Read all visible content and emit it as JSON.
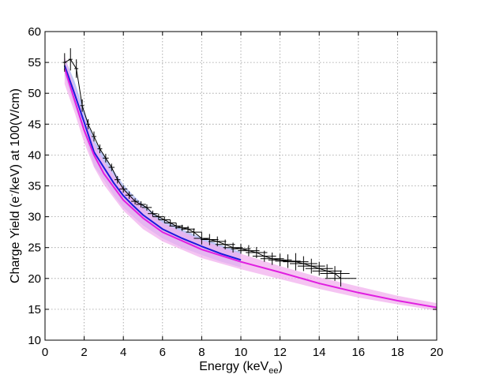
{
  "chart_data": {
    "type": "line",
    "xlabel": {
      "main": "Energy (keV",
      "sub": "ee",
      "close": ")"
    },
    "ylabel": {
      "pre": "Charge Yield (e",
      "sup": "-",
      "post": "/keV) at 100(V/cm)"
    },
    "xlim": [
      0,
      20
    ],
    "ylim": [
      10,
      60
    ],
    "x_ticks": [
      0,
      2,
      4,
      6,
      8,
      10,
      12,
      14,
      16,
      18,
      20
    ],
    "y_ticks": [
      10,
      15,
      20,
      25,
      30,
      35,
      40,
      45,
      50,
      55,
      60
    ],
    "grid": true,
    "colors": {
      "blue_line": "#1a1adc",
      "blue_band": "#a8b4f4",
      "magenta_line": "#e01ee0",
      "magenta_band": "#f2b0ee",
      "data": "#000000"
    },
    "series": [
      {
        "style": "band",
        "color": "blue",
        "x": [
          1.0,
          1.5,
          2.0,
          2.5,
          3.0,
          3.5,
          4.0,
          4.5,
          5.0,
          6.0,
          7.0,
          8.0,
          9.0,
          10.0
        ],
        "lo": [
          52.8,
          48.0,
          43.5,
          38.2,
          36.0,
          33.5,
          31.5,
          30.0,
          28.6,
          26.5,
          25.0,
          23.8,
          22.7,
          21.8
        ],
        "hi": [
          55.8,
          52.0,
          47.2,
          42.5,
          40.0,
          37.5,
          35.2,
          33.5,
          32.0,
          29.5,
          28.0,
          26.6,
          25.4,
          24.3
        ]
      },
      {
        "style": "band",
        "color": "magenta",
        "x": [
          1.0,
          1.5,
          2.0,
          2.5,
          3.0,
          4.0,
          5.0,
          6.0,
          8.0,
          10.0,
          12.0,
          14.0,
          16.0,
          18.0,
          20.0
        ],
        "lo": [
          51.5,
          47.0,
          42.0,
          38.0,
          35.2,
          31.0,
          28.0,
          26.0,
          23.3,
          21.5,
          19.9,
          18.3,
          16.9,
          15.8,
          14.8
        ],
        "hi": [
          56.0,
          51.0,
          46.0,
          42.0,
          39.0,
          34.5,
          31.5,
          29.0,
          26.2,
          24.0,
          22.0,
          20.2,
          18.7,
          17.2,
          16.0
        ]
      },
      {
        "style": "line",
        "color": "blue",
        "x": [
          1.0,
          1.5,
          2.0,
          2.5,
          3.0,
          3.5,
          4.0,
          4.5,
          5.0,
          6.0,
          7.0,
          8.0,
          9.0,
          10.0
        ],
        "y": [
          54.5,
          50.0,
          45.3,
          40.5,
          38.0,
          35.5,
          33.4,
          31.8,
          30.3,
          28.0,
          26.5,
          25.2,
          24.0,
          23.0
        ]
      },
      {
        "style": "line",
        "color": "magenta",
        "x": [
          1.0,
          1.5,
          2.0,
          2.5,
          3.0,
          4.0,
          5.0,
          6.0,
          8.0,
          10.0,
          12.0,
          14.0,
          16.0,
          18.0,
          20.0
        ],
        "y": [
          54.0,
          49.0,
          44.0,
          40.0,
          37.0,
          32.7,
          29.8,
          27.5,
          24.7,
          22.7,
          21.0,
          19.2,
          17.7,
          16.4,
          15.3
        ]
      },
      {
        "style": "errorbar",
        "color": "data",
        "x": [
          1.0,
          1.3,
          1.6,
          1.9,
          2.2,
          2.5,
          2.8,
          3.1,
          3.4,
          3.7,
          4.0,
          4.3,
          4.6,
          4.9,
          5.2,
          5.5,
          5.8,
          6.1,
          6.4,
          6.7,
          7.0,
          7.3,
          7.6,
          8.0,
          8.4,
          8.8,
          9.2,
          9.6,
          10.0,
          10.4,
          10.8,
          11.2,
          11.6,
          12.0,
          12.4,
          12.8,
          13.2,
          13.6,
          14.0,
          14.4,
          14.8,
          15.1
        ],
        "y": [
          55.0,
          55.5,
          54.0,
          48.0,
          45.0,
          43.0,
          41.0,
          39.5,
          38.0,
          36.0,
          34.5,
          33.5,
          32.5,
          32.0,
          31.5,
          30.5,
          30.0,
          29.5,
          29.0,
          28.5,
          28.2,
          28.0,
          27.5,
          26.5,
          26.3,
          26.0,
          25.5,
          25.0,
          24.8,
          24.5,
          24.2,
          23.6,
          23.2,
          23.0,
          22.8,
          22.7,
          22.4,
          22.0,
          21.6,
          21.2,
          20.8,
          20.0
        ],
        "xerr": [
          0.1,
          0.1,
          0.1,
          0.1,
          0.1,
          0.12,
          0.12,
          0.15,
          0.15,
          0.15,
          0.2,
          0.2,
          0.2,
          0.25,
          0.25,
          0.25,
          0.3,
          0.3,
          0.3,
          0.35,
          0.35,
          0.35,
          0.4,
          0.4,
          0.45,
          0.45,
          0.5,
          0.5,
          0.5,
          0.55,
          0.55,
          0.6,
          0.6,
          0.6,
          0.65,
          0.65,
          0.7,
          0.7,
          0.7,
          0.75,
          0.75,
          0.8
        ],
        "yerr": [
          1.5,
          1.8,
          1.5,
          1.0,
          0.8,
          0.8,
          0.7,
          0.7,
          0.6,
          0.6,
          0.6,
          0.6,
          0.5,
          0.5,
          0.5,
          0.5,
          0.5,
          0.5,
          0.5,
          0.5,
          0.5,
          0.5,
          0.6,
          1.0,
          0.9,
          0.8,
          0.8,
          0.8,
          0.8,
          0.9,
          0.9,
          0.9,
          1.0,
          1.0,
          1.1,
          1.4,
          1.2,
          1.2,
          1.1,
          1.1,
          1.2,
          1.3
        ]
      }
    ]
  }
}
